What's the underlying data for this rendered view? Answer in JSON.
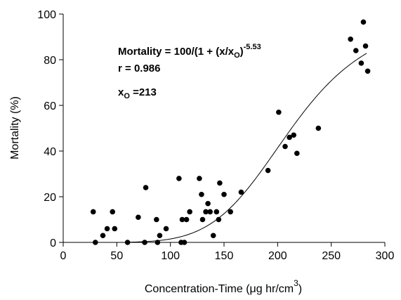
{
  "chart_data": {
    "type": "scatter",
    "x_label": {
      "text": "Concentration-Time (μg hr/cm",
      "sup": "3",
      "close": ")"
    },
    "y_label": "Mortality (%)",
    "xlim": [
      0,
      300
    ],
    "xticks": [
      0,
      50,
      100,
      150,
      200,
      250,
      300
    ],
    "ylim": [
      0,
      100
    ],
    "yticks": [
      0,
      20,
      40,
      60,
      80,
      100
    ],
    "color": "#000000",
    "x": [
      28,
      30,
      37,
      41,
      46,
      48,
      60,
      70,
      76,
      77,
      87,
      88,
      90,
      96,
      108,
      110,
      111,
      113,
      115,
      118,
      127,
      129,
      130,
      133,
      135,
      137,
      140,
      143,
      145,
      146,
      150,
      156,
      166,
      191,
      201,
      207,
      211,
      215,
      218,
      238,
      268,
      273,
      278,
      280,
      282,
      284
    ],
    "values": [
      13.4,
      0,
      3,
      6,
      13.4,
      6,
      0,
      11,
      0,
      24,
      10,
      0,
      3,
      6,
      28,
      0,
      10,
      0,
      10,
      13.4,
      28,
      21,
      10,
      13.4,
      17,
      13.4,
      3,
      13.4,
      10,
      26,
      21,
      13.4,
      22,
      31.5,
      57,
      42,
      46,
      47,
      39,
      50,
      89,
      84,
      78.5,
      96.5,
      86,
      75
    ],
    "fit": {
      "x0": 213,
      "exponent": -5.53,
      "xrange": [
        60,
        283
      ]
    },
    "annotations": {
      "formula": "Mortality = 100/(1 + (x/x",
      "sub": "O",
      "close": ")",
      "r_label": "r = ",
      "r": 0.986,
      "x0_label": "x",
      "x0_sub": "O",
      "x0_eq": " ="
    }
  }
}
